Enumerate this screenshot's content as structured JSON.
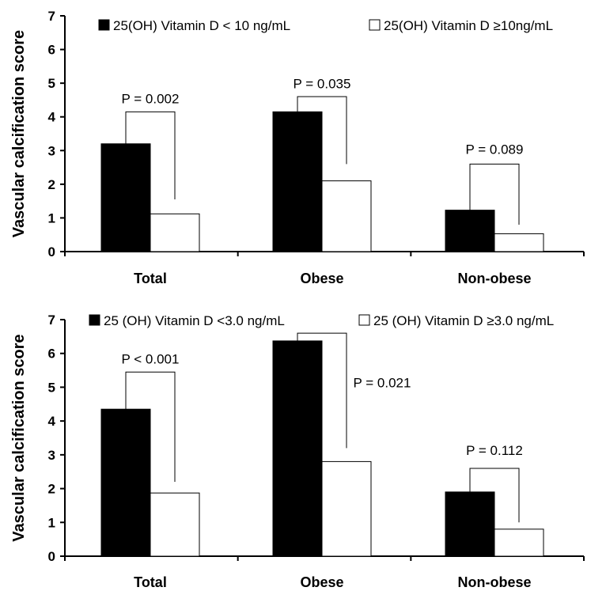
{
  "chart_data": [
    {
      "type": "bar",
      "ylabel": "Vascular calcification score",
      "ylim": [
        0,
        7
      ],
      "yticks": [
        "0",
        "1",
        "2",
        "3",
        "4",
        "5",
        "6",
        "7"
      ],
      "categories": [
        "Total",
        "Obese",
        "Non-obese"
      ],
      "series": [
        {
          "name": "25(OH) Vitamin D < 10 ng/mL",
          "color": "#000000",
          "values": [
            3.2,
            4.15,
            1.23
          ]
        },
        {
          "name": "25(OH) Vitamin D ≥10ng/mL",
          "color": "#ffffff",
          "values": [
            1.12,
            2.1,
            0.53
          ]
        }
      ],
      "pvalues": [
        "P = 0.002",
        "P = 0.035",
        "P = 0.089"
      ],
      "brackets": [
        {
          "top": 4.15,
          "right_bottom": 1.55,
          "label_y": 4.4
        },
        {
          "top": 4.6,
          "right_bottom": 2.6,
          "label_y": 4.85
        },
        {
          "top": 2.6,
          "right_bottom": 0.8,
          "label_y": 2.9
        }
      ],
      "legend": "top"
    },
    {
      "type": "bar",
      "ylabel": "Vascular calcification score",
      "ylim": [
        0,
        7
      ],
      "yticks": [
        "0",
        "1",
        "2",
        "3",
        "4",
        "5",
        "6",
        "7"
      ],
      "categories": [
        "Total",
        "Obese",
        "Non-obese"
      ],
      "series": [
        {
          "name": "25 (OH) Vitamin D <3.0 ng/mL",
          "color": "#000000",
          "values": [
            4.35,
            6.37,
            1.9
          ]
        },
        {
          "name": "25 (OH) Vitamin D ≥3.0 ng/mL",
          "color": "#ffffff",
          "values": [
            1.87,
            2.8,
            0.8
          ]
        }
      ],
      "pvalues": [
        "P < 0.001",
        "P = 0.021",
        "P = 0.112"
      ],
      "brackets": [
        {
          "top": 5.45,
          "right_bottom": 2.2,
          "label_y": 5.7
        },
        {
          "top": 6.6,
          "right_bottom": 3.2,
          "label_y": 5.0
        },
        {
          "top": 2.6,
          "right_bottom": 1.0,
          "label_y": 3.0
        }
      ],
      "legend": "top"
    }
  ]
}
